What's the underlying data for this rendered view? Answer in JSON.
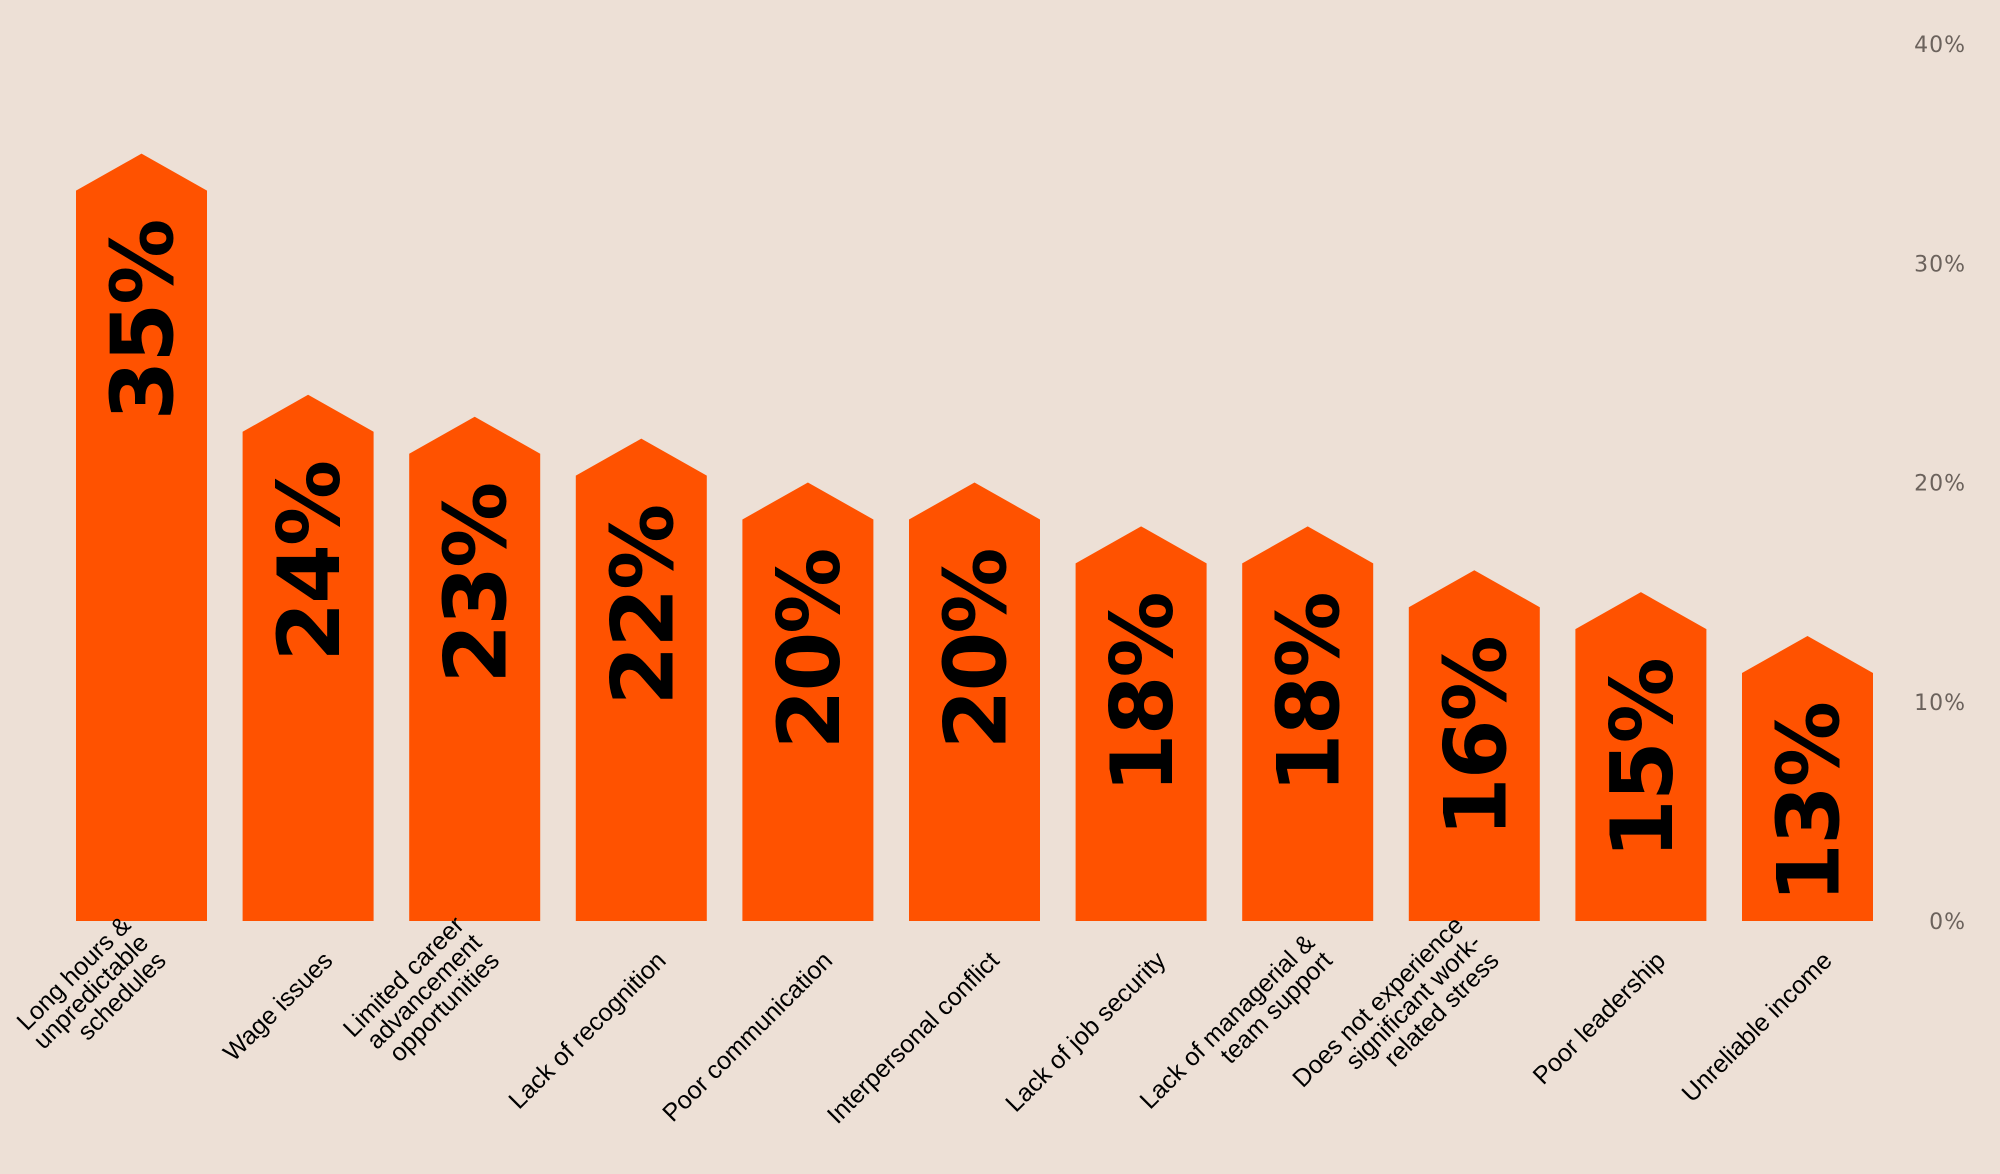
{
  "chart_data": {
    "type": "bar",
    "categories": [
      [
        "Long hours &",
        "unpredictable",
        "schedules"
      ],
      [
        "Wage issues"
      ],
      [
        "Limited career",
        "advancement",
        "opportunities"
      ],
      [
        "Lack of recognition"
      ],
      [
        "Poor communication"
      ],
      [
        "Interpersonal conflict"
      ],
      [
        "Lack of job security"
      ],
      [
        "Lack of managerial &",
        "team support"
      ],
      [
        "Does not experience",
        "significant work-",
        "related stress"
      ],
      [
        "Poor leadership"
      ],
      [
        "Unreliable income"
      ]
    ],
    "values": [
      35,
      24,
      23,
      22,
      20,
      20,
      18,
      18,
      16,
      15,
      13
    ],
    "value_labels": [
      "35%",
      "24%",
      "23%",
      "22%",
      "20%",
      "20%",
      "18%",
      "18%",
      "16%",
      "15%",
      "13%"
    ],
    "y_ticks": [
      0,
      10,
      20,
      30,
      40
    ],
    "y_tick_labels": [
      "0%",
      "10%",
      "20%",
      "30%",
      "40%"
    ],
    "ylim": [
      0,
      40
    ],
    "y_axis_position": "right",
    "grid": false,
    "bar_shape": "arrow-top",
    "colors": {
      "background": "#ede0d6",
      "bar": "#ff5200",
      "value_text": "#000000",
      "tick_text": "#6b625c",
      "category_text": "#000000"
    }
  }
}
